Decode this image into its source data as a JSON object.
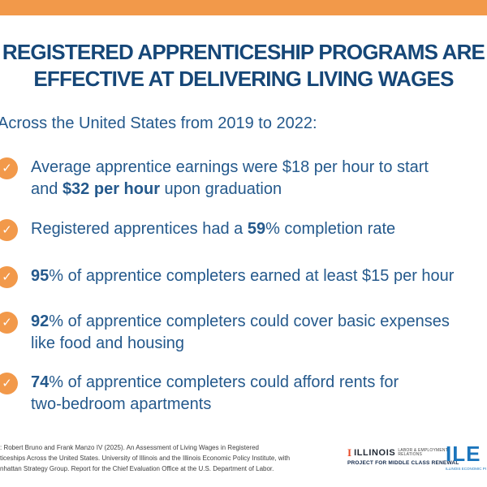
{
  "colors": {
    "accent_orange": "#F2994A",
    "title_navy": "#164778",
    "body_navy": "#24598C",
    "ilepi_blue": "#1B75BC",
    "block_i_orange": "#E84A27",
    "footer_gray": "#3F3F3F"
  },
  "icons": {
    "check": "✓"
  },
  "header": {
    "title_line1": "REGISTERED APPRENTICESHIP PROGRAMS ARE",
    "title_line2": "EFFECTIVE AT DELIVERING LIVING WAGES"
  },
  "intro": {
    "text": "Across the United States from 2019 to 2022:"
  },
  "bullets": [
    {
      "lines": [
        {
          "segs": [
            {
              "t": "Average apprentice earnings were $18 per hour to start"
            }
          ]
        },
        {
          "segs": [
            {
              "t": "and "
            },
            {
              "t": "$32 per hour"
            },
            {
              "t": " upon graduation"
            }
          ]
        }
      ]
    },
    {
      "lines": [
        {
          "segs": [
            {
              "t": "Registered apprentices had a "
            },
            {
              "t": "59"
            },
            {
              "t": "% completion rate"
            }
          ]
        }
      ]
    },
    {
      "lines": [
        {
          "segs": [
            {
              "t": "95"
            },
            {
              "t": "% of apprentice completers earned at least $15 per hour"
            }
          ]
        }
      ]
    },
    {
      "lines": [
        {
          "segs": [
            {
              "t": "92"
            },
            {
              "t": "% of apprentice completers could cover basic expenses"
            }
          ]
        },
        {
          "segs": [
            {
              "t": "like food and housing"
            }
          ]
        }
      ]
    },
    {
      "lines": [
        {
          "segs": [
            {
              "t": "74"
            },
            {
              "t": "% of apprentice completers could afford rents for"
            }
          ]
        },
        {
          "segs": [
            {
              "t": "two-bedroom apartments"
            }
          ]
        }
      ]
    }
  ],
  "footer": {
    "lines": [
      ": Robert Bruno and Frank Manzo IV (2025). An Assessment of Living Wages in Registered",
      "ticeships Across the United States. University of Illinois and the Illinois Economic Policy Institute, with",
      "nhattan Strategy Group. Report for the Chief Evaluation Office at the U.S. Department of Labor."
    ]
  },
  "logos": {
    "illinois": {
      "block_i": "I",
      "wordmark": "ILLINOIS",
      "dept_line1": "LABOR & EMPLOYMENT",
      "dept_line2": "RELATIONS",
      "project": "PROJECT FOR MIDDLE CLASS RENEWAL"
    },
    "ilepi": {
      "wordmark": "ILE",
      "tagline": "ILLINOIS ECONOMIC POLICY"
    }
  }
}
